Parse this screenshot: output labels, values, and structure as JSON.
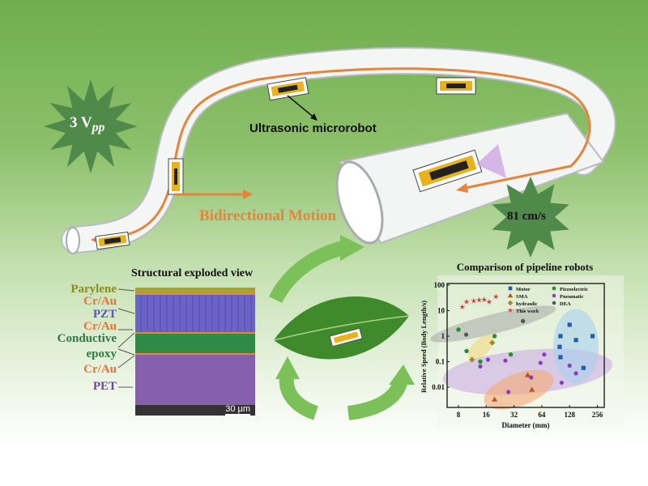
{
  "top": {
    "voltage_label": "3 V",
    "voltage_sub": "pp",
    "speed_label": "81 cm/s",
    "robot_label": "Ultrasonic microrobot",
    "motion_label": "Bidirectional Motion"
  },
  "structure": {
    "title": "Structural exploded view",
    "layers": [
      "Parylene",
      "Cr/Au",
      "PZT",
      "Cr/Au",
      "Conductive",
      "epoxy",
      "Cr/Au",
      "PET"
    ],
    "scale_bar": "30 µm",
    "colors": {
      "parylene": "#a9a233",
      "crau": "#e8873a",
      "pzt": "#6b64c6",
      "epoxy": "#2f8a48",
      "pet": "#8760ad"
    }
  },
  "colors": {
    "accent_orange": "#e5843a",
    "star_green": "#4f8a4a",
    "arrow_green": "#7cc05a"
  },
  "chart_data": {
    "type": "scatter",
    "title": "Comparison of pipeline robots",
    "xlabel": "Diameter (mm)",
    "ylabel": "Relative Speed (Body Length/s)",
    "x_scale": "log2",
    "y_scale": "log10",
    "xlim": [
      6.5,
      300
    ],
    "ylim": [
      0.0016,
      100
    ],
    "x_ticks": [
      "8",
      "16",
      "32",
      "64",
      "128",
      "256"
    ],
    "y_ticks": [
      "100",
      "10",
      "1",
      "0.1",
      "0.01"
    ],
    "legend_position": "top-right",
    "series": [
      {
        "name": "Motor",
        "marker": "square",
        "color": "#1f5fa8",
        "points": [
          [
            102,
            1.0
          ],
          [
            100,
            0.38
          ],
          [
            102,
            0.15
          ],
          [
            128,
            2.8
          ],
          [
            150,
            0.7
          ],
          [
            181,
            0.057
          ],
          [
            227,
            1.0
          ]
        ]
      },
      {
        "name": "SMA",
        "marker": "triangle",
        "color": "#b5561f",
        "points": [
          [
            19.7,
            0.0033
          ],
          [
            45,
            0.03
          ],
          [
            50,
            0.008
          ]
        ]
      },
      {
        "name": "hydraulic",
        "marker": "diamond",
        "color": "#a6862a",
        "points": [
          [
            11.2,
            0.12
          ],
          [
            18.6,
            0.55
          ]
        ]
      },
      {
        "name": "This work",
        "marker": "star",
        "color": "#d2332f",
        "points": [
          [
            8.8,
            14
          ],
          [
            9.8,
            22
          ],
          [
            11.7,
            24
          ],
          [
            13.4,
            26
          ],
          [
            15.2,
            27
          ],
          [
            17.2,
            22
          ],
          [
            20.4,
            35
          ]
        ]
      },
      {
        "name": "Piezoelectric",
        "marker": "pentagon",
        "color": "#2e8a32",
        "points": [
          [
            8,
            1.8
          ],
          [
            9.8,
            0.26
          ],
          [
            13.8,
            0.1
          ],
          [
            19.7,
            1.0
          ],
          [
            29.5,
            0.19
          ]
        ]
      },
      {
        "name": "Pneumatic",
        "marker": "circle",
        "color": "#8c3cc0",
        "points": [
          [
            13.8,
            0.065
          ],
          [
            16.7,
            0.12
          ],
          [
            25.8,
            0.11
          ],
          [
            27.8,
            0.0065
          ],
          [
            49,
            0.024
          ],
          [
            62,
            0.09
          ],
          [
            68,
            0.19
          ],
          [
            105,
            0.015
          ],
          [
            128,
            0.07
          ],
          [
            150,
            0.035
          ]
        ]
      },
      {
        "name": "DEA",
        "marker": "circle",
        "color": "#555555",
        "points": [
          [
            9.7,
            1.15
          ],
          [
            40,
            3.9
          ]
        ]
      }
    ]
  }
}
